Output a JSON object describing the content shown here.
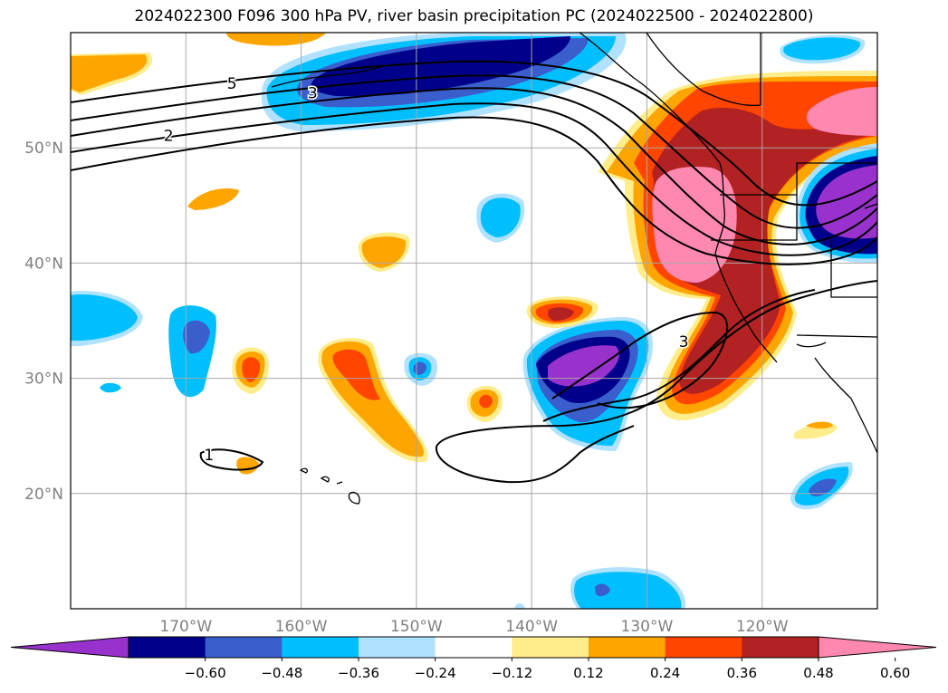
{
  "title": "2024022300 F096 300 hPa PV, river basin precipitation PC (2024022500 - 2024022800)",
  "map": {
    "lon_range": [
      180,
      110
    ],
    "lat_range": [
      10,
      60
    ],
    "lon_ticks": [
      {
        "value": 170,
        "label": "170°W"
      },
      {
        "value": 160,
        "label": "160°W"
      },
      {
        "value": 150,
        "label": "150°W"
      },
      {
        "value": 140,
        "label": "140°W"
      },
      {
        "value": 130,
        "label": "130°W"
      },
      {
        "value": 120,
        "label": "120°W"
      }
    ],
    "lat_ticks": [
      {
        "value": 50,
        "label": "50°N"
      },
      {
        "value": 40,
        "label": "40°N"
      },
      {
        "value": 30,
        "label": "30°N"
      },
      {
        "value": 20,
        "label": "20°N"
      }
    ],
    "grid": true,
    "contour_labels": [
      {
        "text": "5",
        "lon": 166,
        "lat": 55.5
      },
      {
        "text": "3",
        "lon": 159,
        "lat": 54.7
      },
      {
        "text": "2",
        "lon": 171.5,
        "lat": 51.0
      },
      {
        "text": "3",
        "lon": 126.8,
        "lat": 33.1
      },
      {
        "text": "1",
        "lon": 168,
        "lat": 23.3
      }
    ]
  },
  "colorbar": {
    "levels": [
      "−0.60",
      "−0.48",
      "−0.36",
      "−0.24",
      "−0.12",
      "0.12",
      "0.24",
      "0.36",
      "0.48",
      "0.60"
    ],
    "colors": [
      "#9932cc",
      "#00008b",
      "#3a5fcd",
      "#00bfff",
      "#b0e2ff",
      "#ffffff",
      "#ffec8b",
      "#ffa500",
      "#ff4500",
      "#b22222",
      "#ff88b0"
    ],
    "extend": "both"
  }
}
